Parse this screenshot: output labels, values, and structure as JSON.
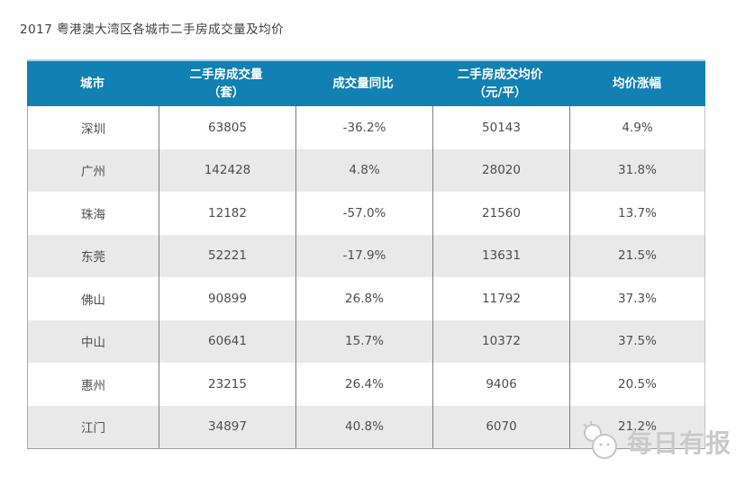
{
  "chart_data": {
    "type": "table",
    "title": "2017 粤港澳大湾区各城市二手房成交量及均价",
    "columns": [
      "城市",
      "二手房成交量（套）",
      "成交量同比",
      "二手房成交均价（元/平）",
      "均价涨幅"
    ],
    "column_lines": [
      [
        "城市"
      ],
      [
        "二手房成交量",
        "（套）"
      ],
      [
        "成交量同比"
      ],
      [
        "二手房成交均价",
        "（元/平）"
      ],
      [
        "均价涨幅"
      ]
    ],
    "column_keys": [
      "city",
      "volume",
      "volume-yoy",
      "avg-price",
      "price-change"
    ],
    "rows": [
      [
        "深圳",
        "63805",
        "-36.2%",
        "50143",
        "4.9%"
      ],
      [
        "广州",
        "142428",
        "4.8%",
        "28020",
        "31.8%"
      ],
      [
        "珠海",
        "12182",
        "-57.0%",
        "21560",
        "13.7%"
      ],
      [
        "东莞",
        "52221",
        "-17.9%",
        "13631",
        "21.5%"
      ],
      [
        "佛山",
        "90899",
        "26.8%",
        "11792",
        "37.3%"
      ],
      [
        "中山",
        "60641",
        "15.7%",
        "10372",
        "37.5%"
      ],
      [
        "惠州",
        "23215",
        "26.4%",
        "9406",
        "20.5%"
      ],
      [
        "江门",
        "34897",
        "40.8%",
        "6070",
        "21.2%"
      ]
    ],
    "layout": {
      "grid": "on",
      "header_position": "top",
      "row_striping": "alternate"
    }
  },
  "watermark": {
    "text": "每日有报",
    "icon": "mascot-logo-icon"
  },
  "colors": {
    "header_bg": "#1180b2",
    "header_text": "#ffffff",
    "row_bg": "#ffffff",
    "row_alt_bg": "#e9e9e9",
    "cell_text": "#4d4d4d",
    "grid_line": "#7e7e7e",
    "title_text": "#3e3e3e",
    "watermark": "#c9c9c9"
  }
}
